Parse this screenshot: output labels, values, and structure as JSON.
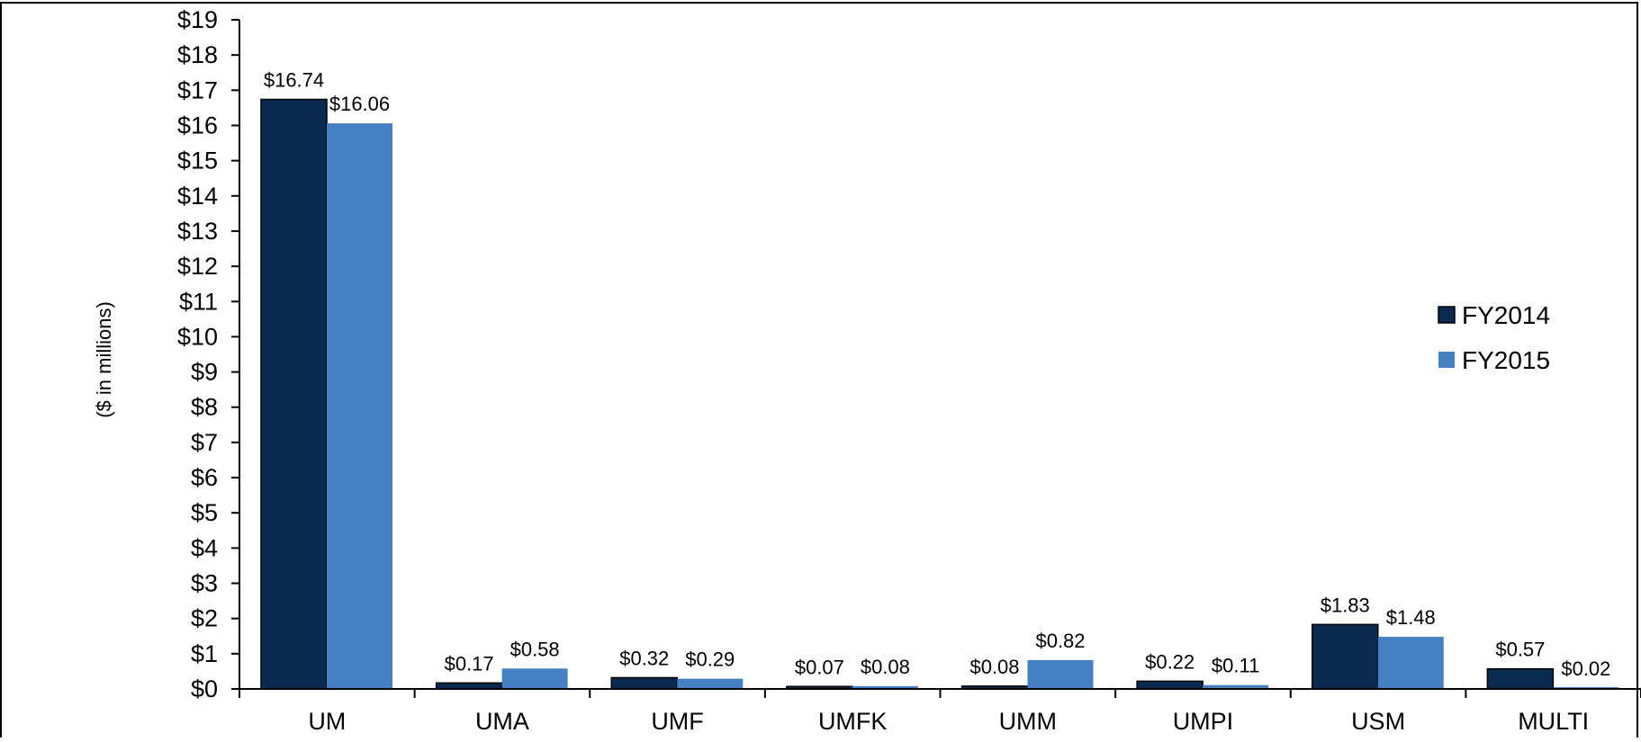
{
  "chart_data": {
    "type": "bar",
    "title": "",
    "xlabel": "",
    "ylabel": "($ in millions)",
    "ylim": [
      0,
      19
    ],
    "y_tick_step": 1,
    "y_tick_prefix": "$",
    "grid": false,
    "legend_position": "right",
    "categories": [
      "UM",
      "UMA",
      "UMF",
      "UMFK",
      "UMM",
      "UMPI",
      "USM",
      "MULTI"
    ],
    "series": [
      {
        "name": "FY2014",
        "color": "#0b2a4f",
        "values": [
          16.74,
          0.17,
          0.32,
          0.07,
          0.08,
          0.22,
          1.83,
          0.57
        ],
        "labels": [
          "$16.74",
          "$0.17",
          "$0.32",
          "$0.07",
          "$0.08",
          "$0.22",
          "$1.83",
          "$0.57"
        ]
      },
      {
        "name": "FY2015",
        "color": "#4581c2",
        "values": [
          16.06,
          0.58,
          0.29,
          0.08,
          0.82,
          0.11,
          1.48,
          0.02
        ],
        "labels": [
          "$16.06",
          "$0.58",
          "$0.29",
          "$0.08",
          "$0.82",
          "$0.11",
          "$1.48",
          "$0.02"
        ]
      }
    ]
  }
}
